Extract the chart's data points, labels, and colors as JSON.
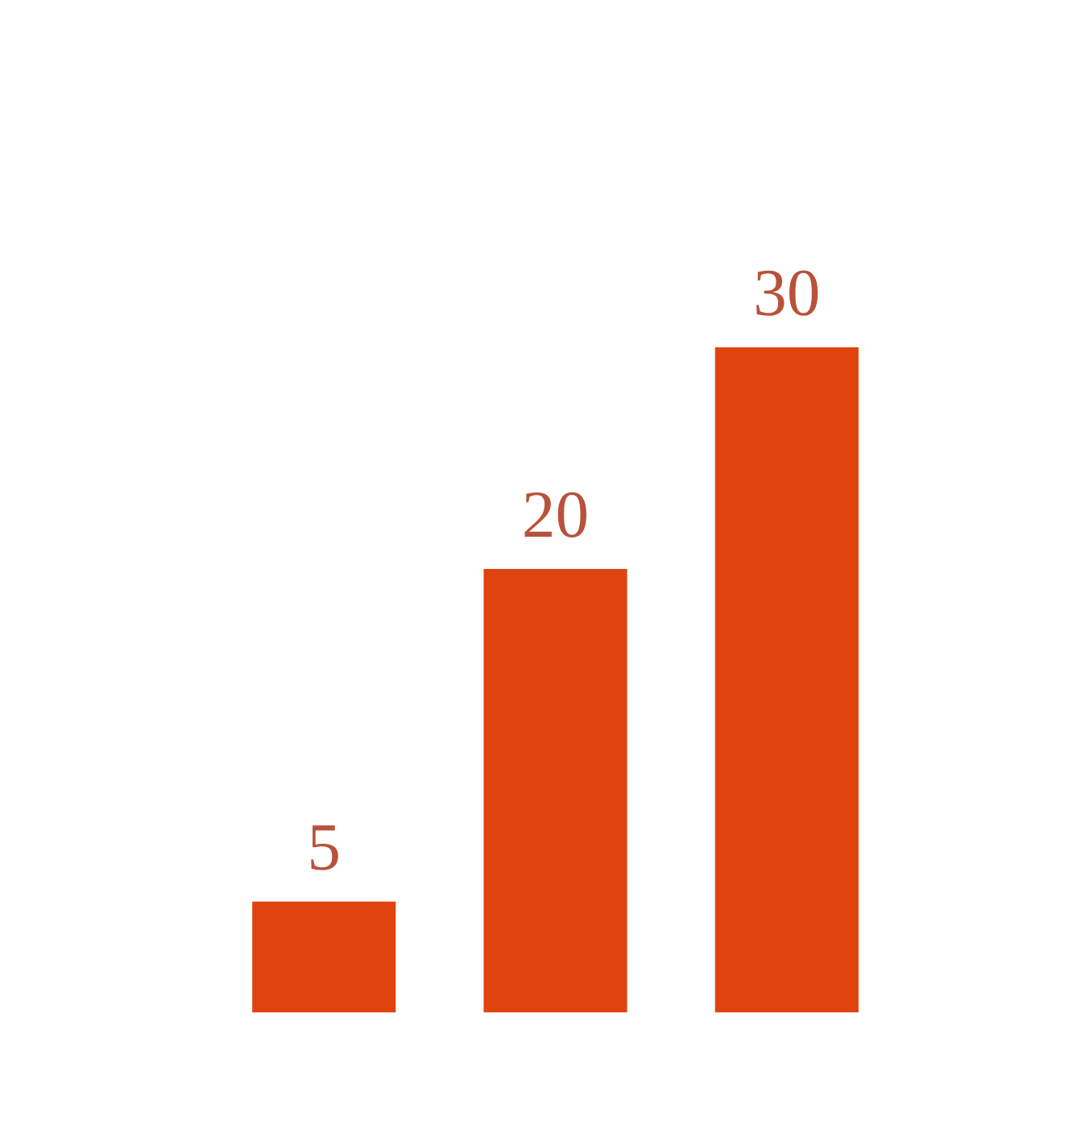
{
  "chart_data": {
    "type": "bar",
    "categories": [
      null,
      null,
      null
    ],
    "values": [
      5,
      20,
      30
    ],
    "color": "#e0440e",
    "data_labels": true
  }
}
